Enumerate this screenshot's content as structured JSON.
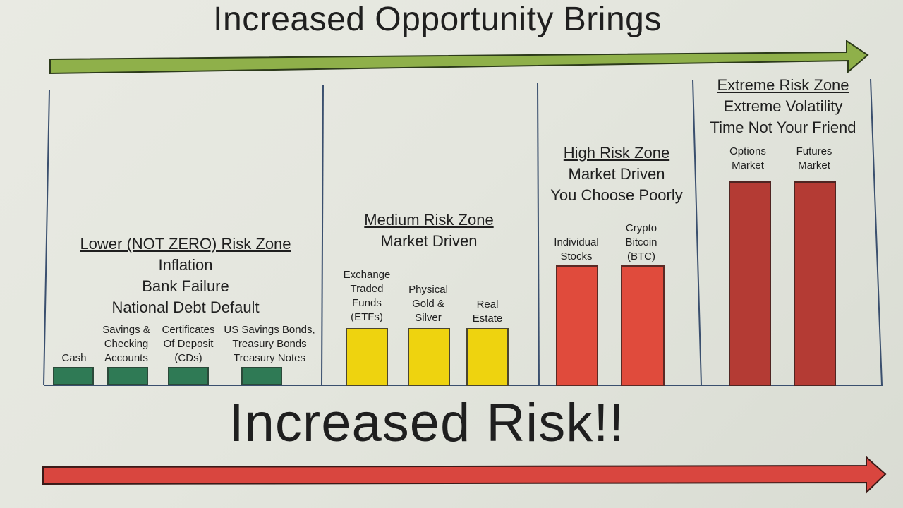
{
  "top_title": "Increased Opportunity Brings",
  "bottom_title": "Increased Risk!!",
  "colors": {
    "opportunity_arrow": "#8fb04a",
    "risk_arrow": "#d9463f",
    "low_bars": "#2f7a55",
    "medium_bars": "#eed30f",
    "high_bars": "#e04b3c",
    "extreme_bars": "#b43b34"
  },
  "zones": {
    "low": {
      "heading": "Lower (NOT ZERO) Risk Zone",
      "lines": [
        "Inflation",
        "Bank Failure",
        "National Debt Default"
      ],
      "items": [
        "Cash",
        "Savings & Checking Accounts",
        "Certificates Of Deposit (CDs)",
        "US Savings Bonds, Treasury Bonds Treasury Notes"
      ]
    },
    "medium": {
      "heading": "Medium Risk Zone",
      "lines": [
        "Market Driven"
      ],
      "items": [
        "Exchange Traded Funds (ETFs)",
        "Physical Gold & Silver",
        "Real Estate"
      ]
    },
    "high": {
      "heading": "High Risk Zone",
      "lines": [
        "Market Driven",
        "You Choose Poorly"
      ],
      "items": [
        "Individual Stocks",
        "Crypto Bitcoin (BTC)"
      ]
    },
    "extreme": {
      "heading": "Extreme Risk Zone",
      "lines": [
        "Extreme Volatility",
        "Time Not Your Friend"
      ],
      "items": [
        "Options Market",
        "Futures Market"
      ]
    }
  }
}
